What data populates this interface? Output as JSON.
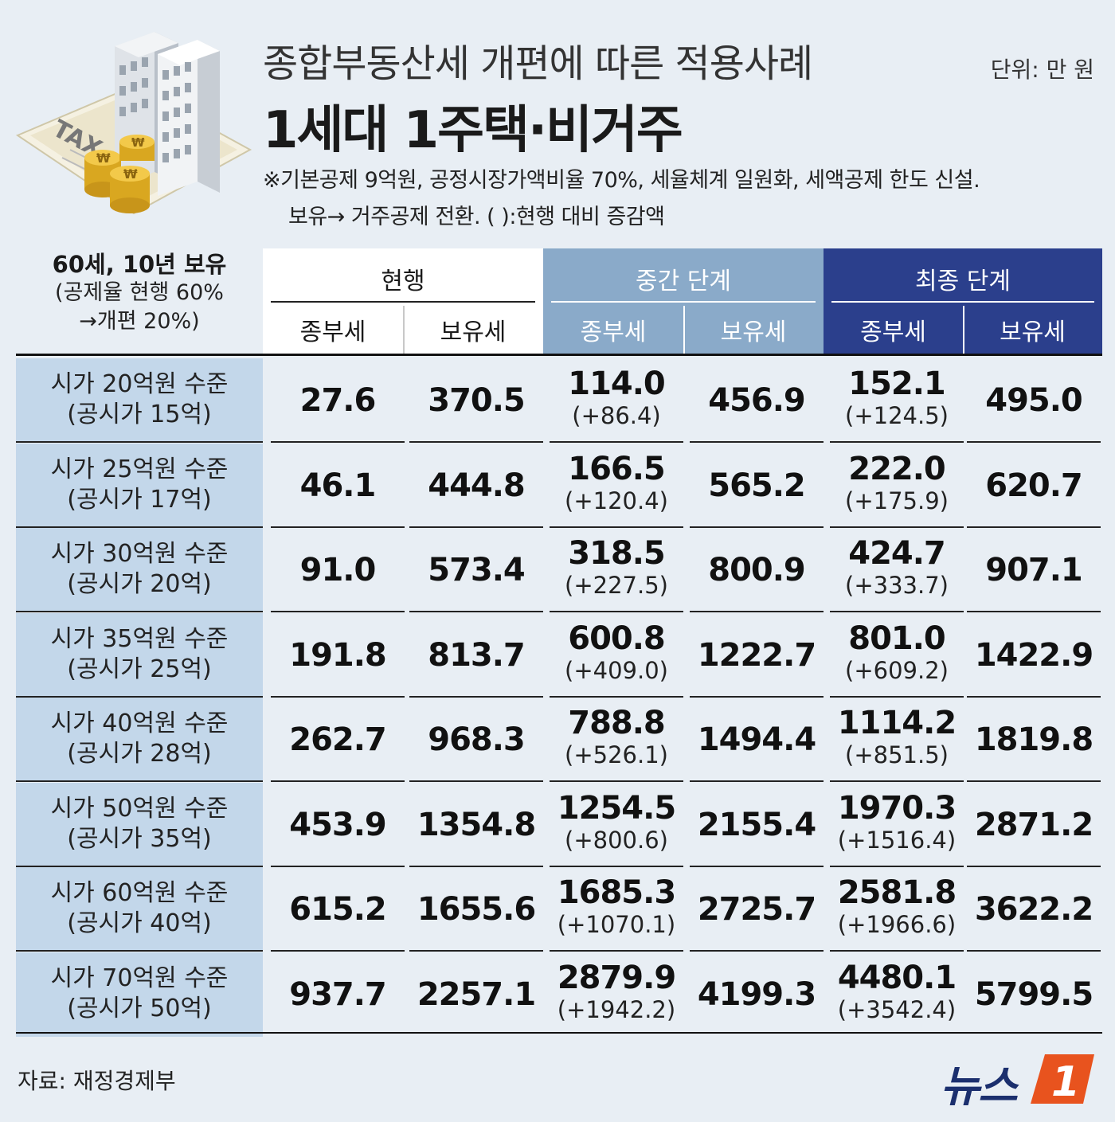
{
  "header": {
    "title": "종합부동산세 개편에 따른 적용사례",
    "subtitle": "1세대 1주택·비거주",
    "unit": "단위: 만 원",
    "note_line1": "※기본공제 9억원, 공정시장가액비율 70%, 세율체계 일원화, 세액공제 한도 신설.",
    "note_line2": "보유→ 거주공제 전환.  ( ):현행 대비 증감액",
    "illustration_text": "TAX"
  },
  "table": {
    "corner": {
      "line1": "60세, 10년 보유",
      "line2": "(공제율 현행 60%",
      "line3": "→개편 20%)"
    },
    "groups": [
      {
        "label": "현행",
        "sub1": "종부세",
        "sub2": "보유세"
      },
      {
        "label": "중간 단계",
        "sub1": "종부세",
        "sub2": "보유세"
      },
      {
        "label": "최종 단계",
        "sub1": "종부세",
        "sub2": "보유세"
      }
    ],
    "rows": [
      {
        "label1": "시가 20억원 수준",
        "label2": "(공시가 15억)",
        "cur_jong": "27.6",
        "cur_bo": "370.5",
        "mid_jong": "114.0",
        "mid_jong_diff": "(+86.4)",
        "mid_bo": "456.9",
        "fin_jong": "152.1",
        "fin_jong_diff": "(+124.5)",
        "fin_bo": "495.0"
      },
      {
        "label1": "시가 25억원 수준",
        "label2": "(공시가 17억)",
        "cur_jong": "46.1",
        "cur_bo": "444.8",
        "mid_jong": "166.5",
        "mid_jong_diff": "(+120.4)",
        "mid_bo": "565.2",
        "fin_jong": "222.0",
        "fin_jong_diff": "(+175.9)",
        "fin_bo": "620.7"
      },
      {
        "label1": "시가 30억원 수준",
        "label2": "(공시가 20억)",
        "cur_jong": "91.0",
        "cur_bo": "573.4",
        "mid_jong": "318.5",
        "mid_jong_diff": "(+227.5)",
        "mid_bo": "800.9",
        "fin_jong": "424.7",
        "fin_jong_diff": "(+333.7)",
        "fin_bo": "907.1"
      },
      {
        "label1": "시가 35억원 수준",
        "label2": "(공시가 25억)",
        "cur_jong": "191.8",
        "cur_bo": "813.7",
        "mid_jong": "600.8",
        "mid_jong_diff": "(+409.0)",
        "mid_bo": "1222.7",
        "fin_jong": "801.0",
        "fin_jong_diff": "(+609.2)",
        "fin_bo": "1422.9"
      },
      {
        "label1": "시가 40억원 수준",
        "label2": "(공시가 28억)",
        "cur_jong": "262.7",
        "cur_bo": "968.3",
        "mid_jong": "788.8",
        "mid_jong_diff": "(+526.1)",
        "mid_bo": "1494.4",
        "fin_jong": "1114.2",
        "fin_jong_diff": "(+851.5)",
        "fin_bo": "1819.8"
      },
      {
        "label1": "시가 50억원 수준",
        "label2": "(공시가 35억)",
        "cur_jong": "453.9",
        "cur_bo": "1354.8",
        "mid_jong": "1254.5",
        "mid_jong_diff": "(+800.6)",
        "mid_bo": "2155.4",
        "fin_jong": "1970.3",
        "fin_jong_diff": "(+1516.4)",
        "fin_bo": "2871.2"
      },
      {
        "label1": "시가 60억원 수준",
        "label2": "(공시가 40억)",
        "cur_jong": "615.2",
        "cur_bo": "1655.6",
        "mid_jong": "1685.3",
        "mid_jong_diff": "(+1070.1)",
        "mid_bo": "2725.7",
        "fin_jong": "2581.8",
        "fin_jong_diff": "(+1966.6)",
        "fin_bo": "3622.2"
      },
      {
        "label1": "시가 70억원 수준",
        "label2": "(공시가 50억)",
        "cur_jong": "937.7",
        "cur_bo": "2257.1",
        "mid_jong": "2879.9",
        "mid_jong_diff": "(+1942.2)",
        "mid_bo": "4199.3",
        "fin_jong": "4480.1",
        "fin_jong_diff": "(+3542.4)",
        "fin_bo": "5799.5"
      }
    ]
  },
  "footer": {
    "source": "자료: 재정경제부",
    "logo_text": "뉴스",
    "logo_mark": "1"
  },
  "colors": {
    "background": "#e8eef4",
    "row_label_bg": "#c3d7ea",
    "mid_header": "#8aaac9",
    "final_header": "#2b3f8c",
    "logo_orange": "#e8531e"
  }
}
